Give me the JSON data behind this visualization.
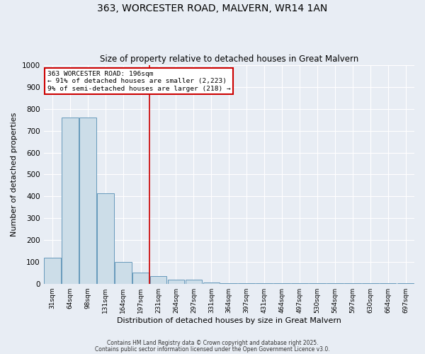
{
  "title": "363, WORCESTER ROAD, MALVERN, WR14 1AN",
  "subtitle": "Size of property relative to detached houses in Great Malvern",
  "xlabel": "Distribution of detached houses by size in Great Malvern",
  "ylabel": "Number of detached properties",
  "bar_color": "#ccdde8",
  "bar_edge_color": "#6699bb",
  "background_color": "#e8edf4",
  "grid_color": "#ffffff",
  "categories": [
    "31sqm",
    "64sqm",
    "98sqm",
    "131sqm",
    "164sqm",
    "197sqm",
    "231sqm",
    "264sqm",
    "297sqm",
    "331sqm",
    "364sqm",
    "397sqm",
    "431sqm",
    "464sqm",
    "497sqm",
    "530sqm",
    "564sqm",
    "597sqm",
    "630sqm",
    "664sqm",
    "697sqm"
  ],
  "values": [
    120,
    760,
    760,
    415,
    100,
    50,
    35,
    20,
    20,
    5,
    2,
    1,
    1,
    1,
    1,
    1,
    1,
    1,
    1,
    1,
    2
  ],
  "ylim": [
    0,
    1000
  ],
  "yticks": [
    0,
    100,
    200,
    300,
    400,
    500,
    600,
    700,
    800,
    900,
    1000
  ],
  "property_line_x": 5.5,
  "property_line_color": "#cc0000",
  "annotation_line1": "363 WORCESTER ROAD: 196sqm",
  "annotation_line2": "← 91% of detached houses are smaller (2,223)",
  "annotation_line3": "9% of semi-detached houses are larger (218) →",
  "annotation_box_color": "#ffffff",
  "annotation_box_edge_color": "#cc0000",
  "footer_line1": "Contains HM Land Registry data © Crown copyright and database right 2025.",
  "footer_line2": "Contains public sector information licensed under the Open Government Licence v3.0."
}
